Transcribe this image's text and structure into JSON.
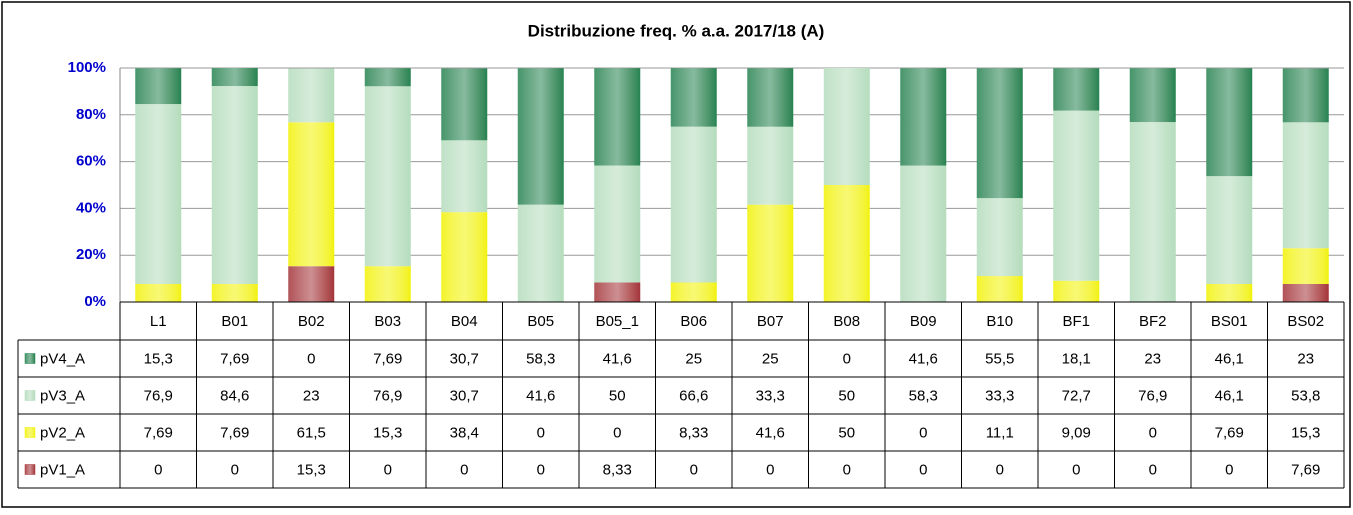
{
  "chart_data": {
    "type": "bar",
    "stacked": true,
    "title": "Distribuzione freq. % a.a. 2017/18 (A)",
    "categories": [
      "L1",
      "B01",
      "B02",
      "B03",
      "B04",
      "B05",
      "B05_1",
      "B06",
      "B07",
      "B08",
      "B09",
      "B10",
      "BF1",
      "BF2",
      "BS01",
      "BS02"
    ],
    "series": [
      {
        "name": "pV4_A",
        "color": "#258250",
        "values": [
          15.3,
          7.69,
          0,
          7.69,
          30.7,
          58.3,
          41.6,
          25,
          25,
          0,
          41.6,
          55.5,
          18.1,
          23,
          46.1,
          23
        ],
        "value_labels": [
          "15,3",
          "7,69",
          "0",
          "7,69",
          "30,7",
          "58,3",
          "41,6",
          "25",
          "25",
          "0",
          "41,6",
          "55,5",
          "18,1",
          "23",
          "46,1",
          "23"
        ]
      },
      {
        "name": "pV3_A",
        "color": "#b4dcbc",
        "values": [
          76.9,
          84.6,
          23,
          76.9,
          30.7,
          41.6,
          50,
          66.6,
          33.3,
          50,
          58.3,
          33.3,
          72.7,
          76.9,
          46.1,
          53.8
        ],
        "value_labels": [
          "76,9",
          "84,6",
          "23",
          "76,9",
          "30,7",
          "41,6",
          "50",
          "66,6",
          "33,3",
          "50",
          "58,3",
          "33,3",
          "72,7",
          "76,9",
          "46,1",
          "53,8"
        ]
      },
      {
        "name": "pV2_A",
        "color": "#f2f200",
        "values": [
          7.69,
          7.69,
          61.5,
          15.3,
          38.4,
          0,
          0,
          8.33,
          41.6,
          50,
          0,
          11.1,
          9.09,
          0,
          7.69,
          15.3
        ],
        "value_labels": [
          "7,69",
          "7,69",
          "61,5",
          "15,3",
          "38,4",
          "0",
          "0",
          "8,33",
          "41,6",
          "50",
          "0",
          "11,1",
          "9,09",
          "0",
          "7,69",
          "15,3"
        ]
      },
      {
        "name": "pV1_A",
        "color": "#a3343a",
        "values": [
          0,
          0,
          15.3,
          0,
          0,
          0,
          8.33,
          0,
          0,
          0,
          0,
          0,
          0,
          0,
          0,
          7.69
        ],
        "value_labels": [
          "0",
          "0",
          "15,3",
          "0",
          "0",
          "0",
          "8,33",
          "0",
          "0",
          "0",
          "0",
          "0",
          "0",
          "0",
          "0",
          "7,69"
        ]
      }
    ],
    "ylim": [
      0,
      100
    ],
    "yticks": [
      {
        "value": 0,
        "label": "0%"
      },
      {
        "value": 20,
        "label": "20%"
      },
      {
        "value": 40,
        "label": "40%"
      },
      {
        "value": 60,
        "label": "60%"
      },
      {
        "value": 80,
        "label": "80%"
      },
      {
        "value": 100,
        "label": "100%"
      }
    ],
    "grid": true
  }
}
